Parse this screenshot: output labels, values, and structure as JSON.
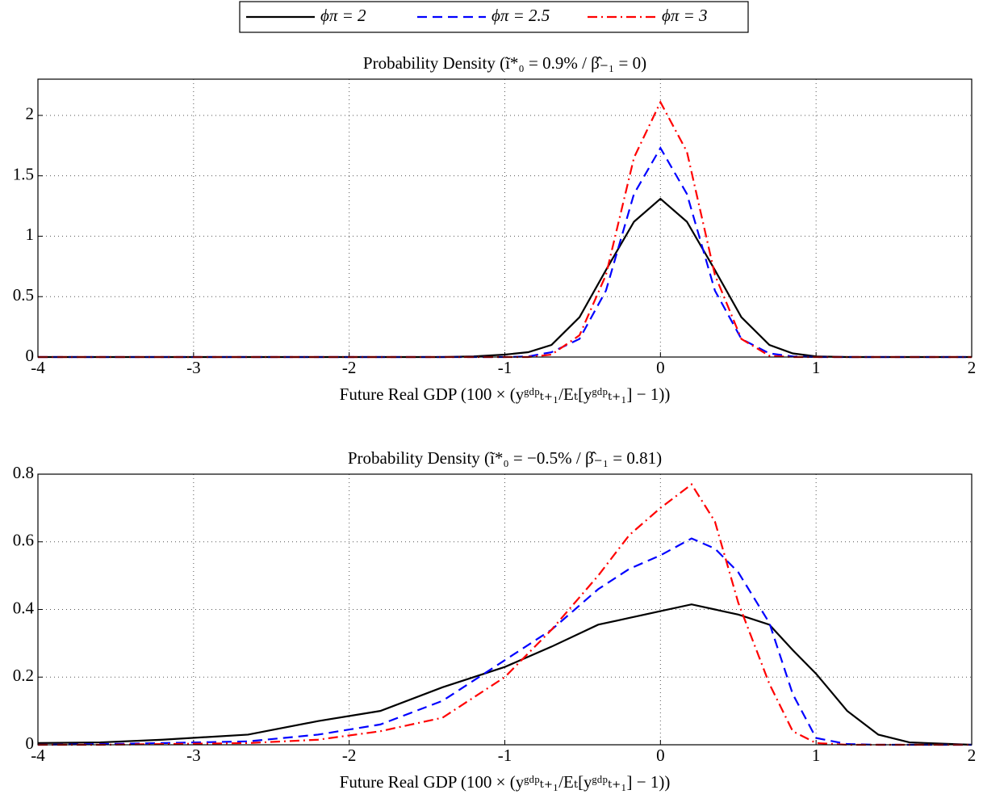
{
  "chart_data": [
    {
      "type": "line",
      "title": "Probability Density (ĩ*₀ = 0.9% / β̂₋₁ = 0)",
      "x_label": "Future Real GDP (100 × (yᵍᵈᵖₜ₊₁/Eₜ[yᵍᵈᵖₜ₊₁] − 1))",
      "x": [
        -4,
        -1.4,
        -1.2,
        -1.0,
        -0.85,
        -0.7,
        -0.52,
        -0.35,
        -0.17,
        0,
        0.17,
        0.35,
        0.52,
        0.7,
        0.85,
        1.0,
        1.2,
        2
      ],
      "series": [
        {
          "name": "ϕπ = 2",
          "color": "#000000",
          "dash": "solid",
          "values": [
            0,
            0,
            0.005,
            0.02,
            0.04,
            0.1,
            0.33,
            0.72,
            1.12,
            1.31,
            1.12,
            0.72,
            0.33,
            0.1,
            0.03,
            0.005,
            0,
            0
          ]
        },
        {
          "name": "ϕπ = 2.5",
          "color": "#0000ff",
          "dash": "dashed",
          "values": [
            0,
            0,
            0,
            0,
            0.005,
            0.04,
            0.15,
            0.55,
            1.35,
            1.73,
            1.35,
            0.55,
            0.15,
            0.03,
            0.005,
            0,
            0,
            0
          ]
        },
        {
          "name": "ϕπ = 3",
          "color": "#ff0000",
          "dash": "dashdot",
          "values": [
            0,
            0,
            0,
            0,
            0,
            0.02,
            0.18,
            0.68,
            1.65,
            2.11,
            1.7,
            0.68,
            0.15,
            0.01,
            0,
            0,
            0,
            0
          ]
        }
      ],
      "xlim": [
        -4,
        2
      ],
      "xticks": [
        -4,
        -3,
        -2,
        -1,
        0,
        1,
        2
      ],
      "ylim": [
        0,
        2.3
      ],
      "yticks": [
        0,
        0.5,
        1,
        1.5,
        2
      ],
      "grid": true
    },
    {
      "type": "line",
      "title": "Probability Density (ĩ*₀ = −0.5% / β̂₋₁ = 0.81)",
      "x_label": "Future Real GDP (100 × (yᵍᵈᵖₜ₊₁/Eₜ[yᵍᵈᵖₜ₊₁] − 1))",
      "x": [
        -4,
        -3.6,
        -3.2,
        -2.65,
        -2.2,
        -1.8,
        -1.4,
        -1.0,
        -0.7,
        -0.4,
        -0.2,
        0,
        0.2,
        0.35,
        0.5,
        0.7,
        0.85,
        1.0,
        1.2,
        1.4,
        1.6,
        2
      ],
      "series": [
        {
          "name": "ϕπ = 2",
          "color": "#000000",
          "dash": "solid",
          "values": [
            0.005,
            0.007,
            0.015,
            0.03,
            0.07,
            0.1,
            0.17,
            0.23,
            0.29,
            0.355,
            0.375,
            0.395,
            0.415,
            0.4,
            0.385,
            0.355,
            0.28,
            0.21,
            0.1,
            0.03,
            0.007,
            0
          ]
        },
        {
          "name": "ϕπ = 2.5",
          "color": "#0000ff",
          "dash": "dashed",
          "values": [
            0,
            0.002,
            0.005,
            0.01,
            0.03,
            0.06,
            0.13,
            0.25,
            0.34,
            0.46,
            0.52,
            0.56,
            0.61,
            0.58,
            0.51,
            0.36,
            0.15,
            0.02,
            0.002,
            0,
            0,
            0
          ]
        },
        {
          "name": "ϕπ = 3",
          "color": "#ff0000",
          "dash": "dashdot",
          "values": [
            0,
            0,
            0.002,
            0.005,
            0.015,
            0.04,
            0.08,
            0.2,
            0.34,
            0.5,
            0.62,
            0.7,
            0.77,
            0.66,
            0.42,
            0.18,
            0.04,
            0.005,
            0,
            0,
            0,
            0
          ]
        }
      ],
      "xlim": [
        -4,
        2
      ],
      "xticks": [
        -4,
        -3,
        -2,
        -1,
        0,
        1,
        2
      ],
      "ylim": [
        0,
        0.8
      ],
      "yticks": [
        0,
        0.2,
        0.4,
        0.6,
        0.8
      ],
      "grid": true
    }
  ]
}
